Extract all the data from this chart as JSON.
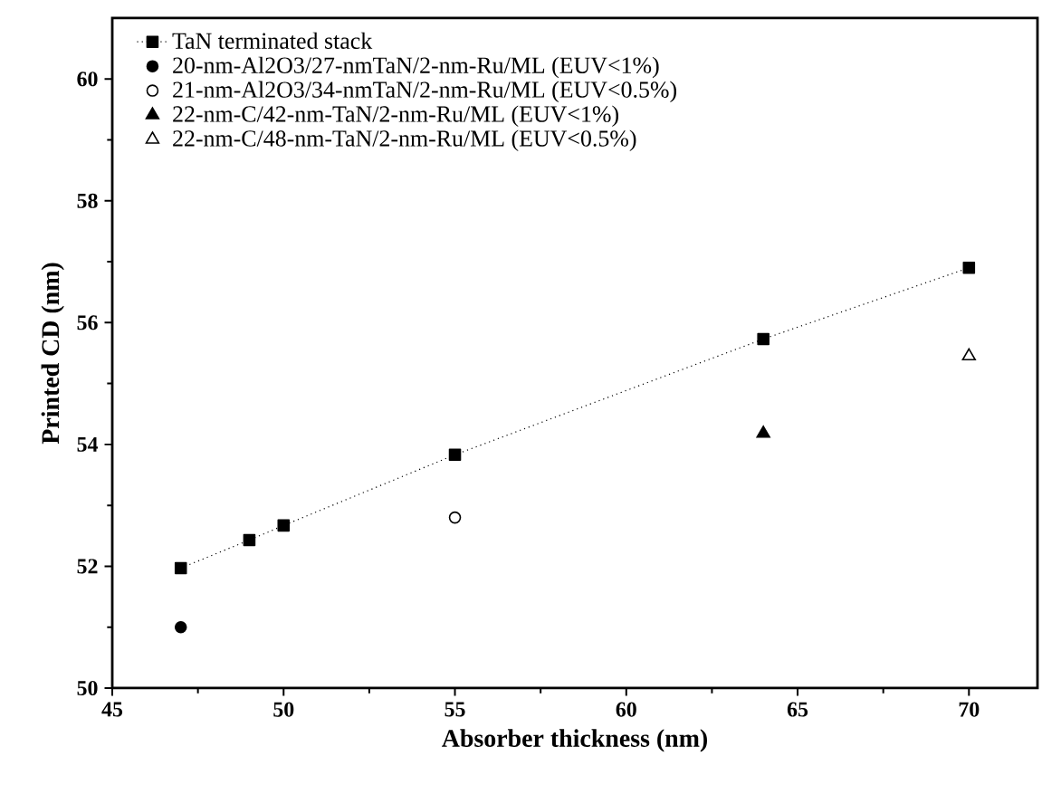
{
  "chart_data": {
    "type": "scatter",
    "xlabel": "Absorber thickness (nm)",
    "ylabel": "Printed CD (nm)",
    "xlim": [
      45,
      72
    ],
    "ylim": [
      50,
      61
    ],
    "xticks": [
      45,
      50,
      55,
      60,
      65,
      70
    ],
    "yticks": [
      50,
      52,
      54,
      56,
      58,
      60
    ],
    "grid": false,
    "legend": "top left",
    "series": [
      {
        "name": "TaN terminated stack",
        "type": "line",
        "marker": "square",
        "line_style": "dotted",
        "color": "#000000",
        "x": [
          47,
          49,
          50,
          55,
          64,
          70
        ],
        "values": [
          51.97,
          52.43,
          52.67,
          53.83,
          55.73,
          56.9
        ]
      },
      {
        "name": "20-nm-Al2O3/27-nmTaN/2-nm-Ru/ML (EUV<1%)",
        "marker": "circle",
        "color": "#000000",
        "x": [
          47
        ],
        "values": [
          51.0
        ]
      },
      {
        "name": "21-nm-Al2O3/34-nmTaN/2-nm-Ru/ML (EUV<0.5%)",
        "marker": "circle",
        "color": "#ffffff",
        "x": [
          55
        ],
        "values": [
          52.8
        ]
      },
      {
        "name": "22-nm-C/42-nm-TaN/2-nm-Ru/ML (EUV<1%)",
        "marker": "triangle",
        "color": "#000000",
        "x": [
          64
        ],
        "values": [
          54.18
        ]
      },
      {
        "name": "22-nm-C/48-nm-TaN/2-nm-Ru/ML (EUV<0.5%)",
        "marker": "triangle",
        "color": "#ffffff",
        "x": [
          70
        ],
        "values": [
          55.45
        ]
      }
    ]
  }
}
